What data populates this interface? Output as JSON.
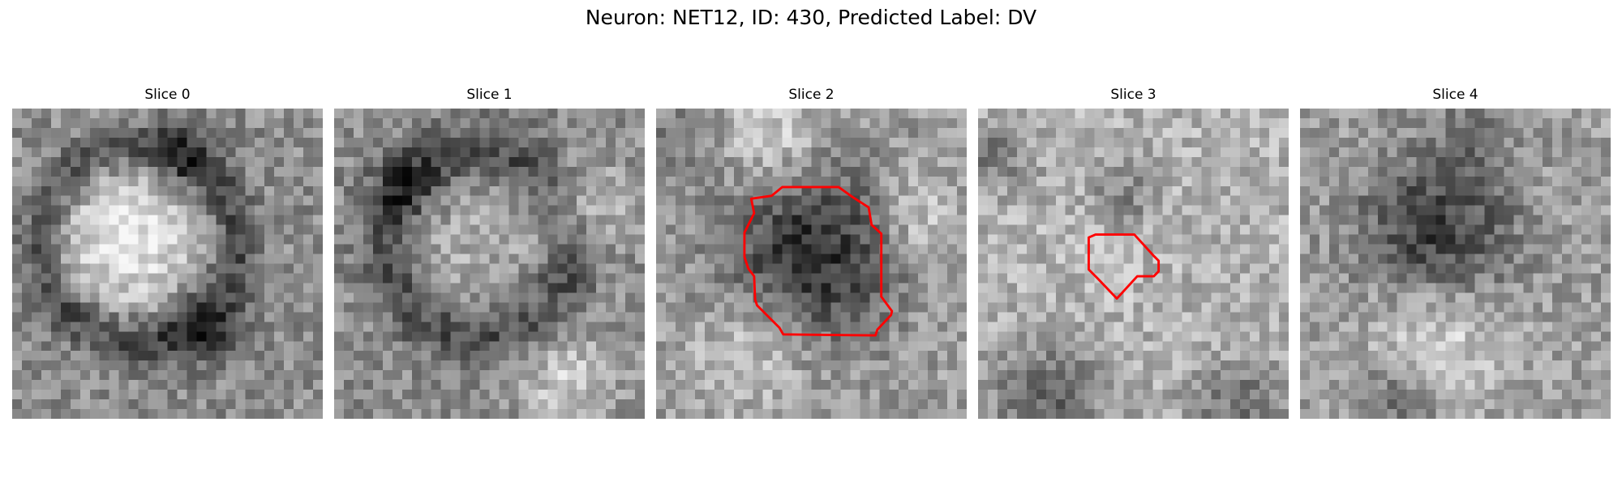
{
  "figure": {
    "title": "Neuron: NET12, ID: 430, Predicted Label: DV"
  },
  "panels": [
    {
      "title": "Slice 0",
      "has_contour": false
    },
    {
      "title": "Slice 1",
      "has_contour": false
    },
    {
      "title": "Slice 2",
      "has_contour": true
    },
    {
      "title": "Slice 3",
      "has_contour": true
    },
    {
      "title": "Slice 4",
      "has_contour": false
    }
  ],
  "colors": {
    "contour": "#ff0000",
    "background": "#ffffff"
  }
}
